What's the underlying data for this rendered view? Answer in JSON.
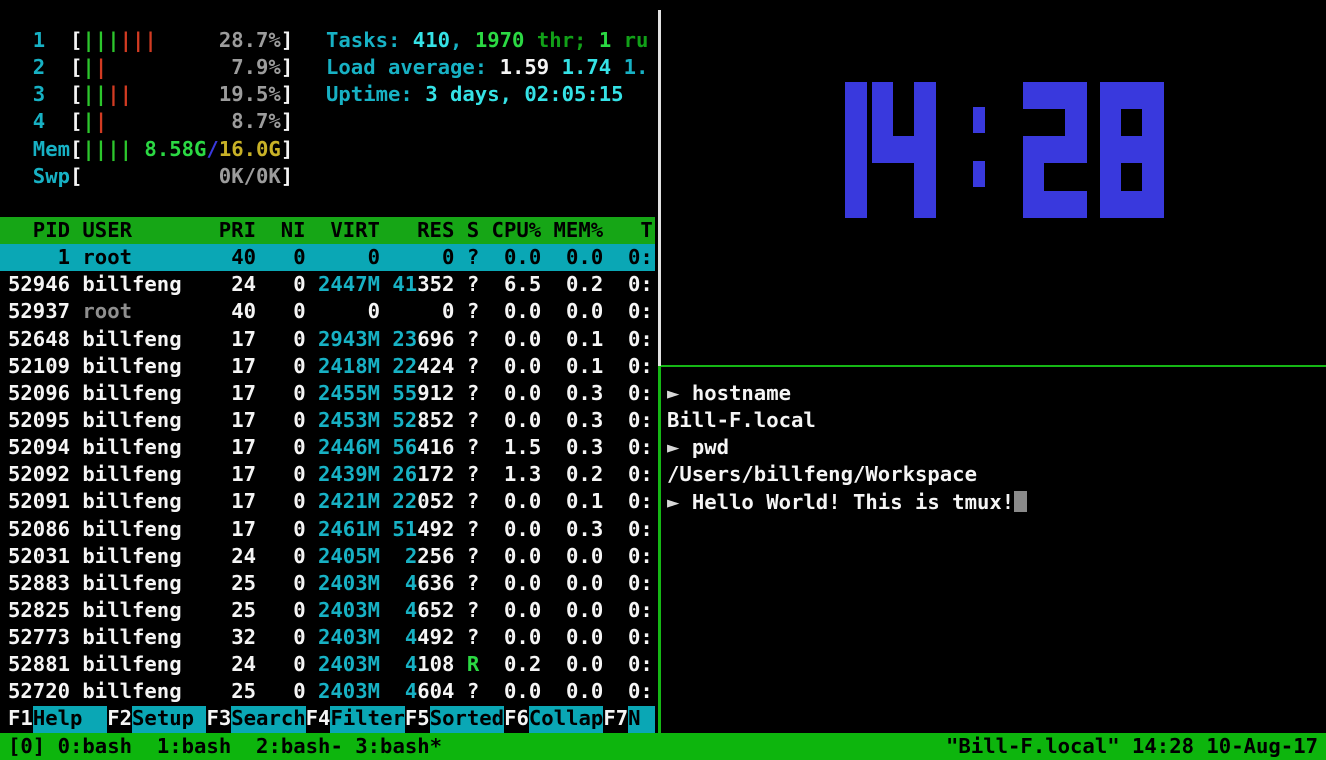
{
  "htop": {
    "meters": [
      {
        "label": "1",
        "green_bars": 3,
        "red_bars": 3,
        "text_segments": [
          {
            "t": "28.7%",
            "c": "c-gray"
          }
        ]
      },
      {
        "label": "2",
        "green_bars": 1,
        "red_bars": 1,
        "text_segments": [
          {
            "t": "7.9%",
            "c": "c-gray"
          }
        ]
      },
      {
        "label": "3",
        "green_bars": 2,
        "red_bars": 2,
        "text_segments": [
          {
            "t": "19.5%",
            "c": "c-gray"
          }
        ]
      },
      {
        "label": "4",
        "green_bars": 1,
        "red_bars": 1,
        "text_segments": [
          {
            "t": "8.7%",
            "c": "c-gray"
          }
        ]
      },
      {
        "label": "Mem",
        "green_bars": 4,
        "red_bars": 0,
        "text_segments": [
          {
            "t": "8.58G",
            "c": "c-bgreen"
          },
          {
            "t": "/",
            "c": "c-blue"
          },
          {
            "t": "16.0G",
            "c": "c-yellow"
          }
        ]
      },
      {
        "label": "Swp",
        "green_bars": 0,
        "red_bars": 0,
        "text_segments": [
          {
            "t": "0K/0K",
            "c": "c-gray"
          }
        ]
      }
    ],
    "info_lines": [
      {
        "name": "tasks-line",
        "segments": [
          {
            "t": "Tasks: ",
            "c": "c-cyan"
          },
          {
            "t": "410",
            "c": "c-bcyan"
          },
          {
            "t": ", ",
            "c": "c-cyan"
          },
          {
            "t": "1970",
            "c": "c-bgreen"
          },
          {
            "t": " thr; ",
            "c": "c-green"
          },
          {
            "t": "1",
            "c": "c-bgreen"
          },
          {
            "t": " ru",
            "c": "c-green"
          }
        ]
      },
      {
        "name": "load-average-line",
        "segments": [
          {
            "t": "Load average: ",
            "c": "c-cyan"
          },
          {
            "t": "1.59 ",
            "c": "c-white"
          },
          {
            "t": "1.74 ",
            "c": "c-bcyan"
          },
          {
            "t": "1.",
            "c": "c-cyan"
          }
        ]
      },
      {
        "name": "uptime-line",
        "segments": [
          {
            "t": "Uptime: ",
            "c": "c-cyan"
          },
          {
            "t": "3 days, 02:05:15",
            "c": "c-bcyan"
          }
        ]
      }
    ],
    "table": {
      "widths": {
        "pid": 5,
        "user": 10,
        "pri": 3,
        "ni": 3,
        "virt": 5,
        "res": 5,
        "s": 1,
        "cpu": 4,
        "mem": 4,
        "time": 3
      },
      "header": [
        "PID",
        "USER",
        "PRI",
        "NI",
        "VIRT",
        "RES",
        "S",
        "CPU%",
        "MEM%",
        "T"
      ],
      "rows": [
        {
          "pid": "1",
          "user": "root",
          "pri": "40",
          "ni": "0",
          "virt": "0",
          "virt_cyan": false,
          "res_hi": "",
          "res_lo": "0",
          "s": "?",
          "s_green": false,
          "cpu": "0.0",
          "mem": "0.0",
          "time": "0:",
          "selected": true,
          "user_dim": false
        },
        {
          "pid": "52946",
          "user": "billfeng",
          "pri": "24",
          "ni": "0",
          "virt": "2447M",
          "virt_cyan": true,
          "res_hi": "41",
          "res_lo": "352",
          "s": "?",
          "s_green": false,
          "cpu": "6.5",
          "mem": "0.2",
          "time": "0:",
          "selected": false,
          "user_dim": false
        },
        {
          "pid": "52937",
          "user": "root",
          "pri": "40",
          "ni": "0",
          "virt": "0",
          "virt_cyan": false,
          "res_hi": "",
          "res_lo": "0",
          "s": "?",
          "s_green": false,
          "cpu": "0.0",
          "mem": "0.0",
          "time": "0:",
          "selected": false,
          "user_dim": true
        },
        {
          "pid": "52648",
          "user": "billfeng",
          "pri": "17",
          "ni": "0",
          "virt": "2943M",
          "virt_cyan": true,
          "res_hi": "23",
          "res_lo": "696",
          "s": "?",
          "s_green": false,
          "cpu": "0.0",
          "mem": "0.1",
          "time": "0:",
          "selected": false,
          "user_dim": false
        },
        {
          "pid": "52109",
          "user": "billfeng",
          "pri": "17",
          "ni": "0",
          "virt": "2418M",
          "virt_cyan": true,
          "res_hi": "22",
          "res_lo": "424",
          "s": "?",
          "s_green": false,
          "cpu": "0.0",
          "mem": "0.1",
          "time": "0:",
          "selected": false,
          "user_dim": false
        },
        {
          "pid": "52096",
          "user": "billfeng",
          "pri": "17",
          "ni": "0",
          "virt": "2455M",
          "virt_cyan": true,
          "res_hi": "55",
          "res_lo": "912",
          "s": "?",
          "s_green": false,
          "cpu": "0.0",
          "mem": "0.3",
          "time": "0:",
          "selected": false,
          "user_dim": false
        },
        {
          "pid": "52095",
          "user": "billfeng",
          "pri": "17",
          "ni": "0",
          "virt": "2453M",
          "virt_cyan": true,
          "res_hi": "52",
          "res_lo": "852",
          "s": "?",
          "s_green": false,
          "cpu": "0.0",
          "mem": "0.3",
          "time": "0:",
          "selected": false,
          "user_dim": false
        },
        {
          "pid": "52094",
          "user": "billfeng",
          "pri": "17",
          "ni": "0",
          "virt": "2446M",
          "virt_cyan": true,
          "res_hi": "56",
          "res_lo": "416",
          "s": "?",
          "s_green": false,
          "cpu": "1.5",
          "mem": "0.3",
          "time": "0:",
          "selected": false,
          "user_dim": false
        },
        {
          "pid": "52092",
          "user": "billfeng",
          "pri": "17",
          "ni": "0",
          "virt": "2439M",
          "virt_cyan": true,
          "res_hi": "26",
          "res_lo": "172",
          "s": "?",
          "s_green": false,
          "cpu": "1.3",
          "mem": "0.2",
          "time": "0:",
          "selected": false,
          "user_dim": false
        },
        {
          "pid": "52091",
          "user": "billfeng",
          "pri": "17",
          "ni": "0",
          "virt": "2421M",
          "virt_cyan": true,
          "res_hi": "22",
          "res_lo": "052",
          "s": "?",
          "s_green": false,
          "cpu": "0.0",
          "mem": "0.1",
          "time": "0:",
          "selected": false,
          "user_dim": false
        },
        {
          "pid": "52086",
          "user": "billfeng",
          "pri": "17",
          "ni": "0",
          "virt": "2461M",
          "virt_cyan": true,
          "res_hi": "51",
          "res_lo": "492",
          "s": "?",
          "s_green": false,
          "cpu": "0.0",
          "mem": "0.3",
          "time": "0:",
          "selected": false,
          "user_dim": false
        },
        {
          "pid": "52031",
          "user": "billfeng",
          "pri": "24",
          "ni": "0",
          "virt": "2405M",
          "virt_cyan": true,
          "res_hi": "2",
          "res_lo": "256",
          "s": "?",
          "s_green": false,
          "cpu": "0.0",
          "mem": "0.0",
          "time": "0:",
          "selected": false,
          "user_dim": false
        },
        {
          "pid": "52883",
          "user": "billfeng",
          "pri": "25",
          "ni": "0",
          "virt": "2403M",
          "virt_cyan": true,
          "res_hi": "4",
          "res_lo": "636",
          "s": "?",
          "s_green": false,
          "cpu": "0.0",
          "mem": "0.0",
          "time": "0:",
          "selected": false,
          "user_dim": false
        },
        {
          "pid": "52825",
          "user": "billfeng",
          "pri": "25",
          "ni": "0",
          "virt": "2403M",
          "virt_cyan": true,
          "res_hi": "4",
          "res_lo": "652",
          "s": "?",
          "s_green": false,
          "cpu": "0.0",
          "mem": "0.0",
          "time": "0:",
          "selected": false,
          "user_dim": false
        },
        {
          "pid": "52773",
          "user": "billfeng",
          "pri": "32",
          "ni": "0",
          "virt": "2403M",
          "virt_cyan": true,
          "res_hi": "4",
          "res_lo": "492",
          "s": "?",
          "s_green": false,
          "cpu": "0.0",
          "mem": "0.0",
          "time": "0:",
          "selected": false,
          "user_dim": false
        },
        {
          "pid": "52881",
          "user": "billfeng",
          "pri": "24",
          "ni": "0",
          "virt": "2403M",
          "virt_cyan": true,
          "res_hi": "4",
          "res_lo": "108",
          "s": "R",
          "s_green": true,
          "cpu": "0.2",
          "mem": "0.0",
          "time": "0:",
          "selected": false,
          "user_dim": false
        },
        {
          "pid": "52720",
          "user": "billfeng",
          "pri": "25",
          "ni": "0",
          "virt": "2403M",
          "virt_cyan": true,
          "res_hi": "4",
          "res_lo": "604",
          "s": "?",
          "s_green": false,
          "cpu": "0.0",
          "mem": "0.0",
          "time": "0:",
          "selected": false,
          "user_dim": false
        }
      ]
    },
    "fkeys": [
      {
        "key": "F1",
        "label": "Help  "
      },
      {
        "key": "F2",
        "label": "Setup "
      },
      {
        "key": "F3",
        "label": "Search"
      },
      {
        "key": "F4",
        "label": "Filter"
      },
      {
        "key": "F5",
        "label": "Sorted"
      },
      {
        "key": "F6",
        "label": "Collap"
      },
      {
        "key": "F7",
        "label": "N"
      }
    ]
  },
  "clock": {
    "time": "14:28",
    "color": "#3939dd"
  },
  "shell": {
    "lines": [
      {
        "prompt": "►",
        "text": "hostname",
        "cursor": false
      },
      {
        "prompt": "",
        "text": "Bill-F.local",
        "cursor": false
      },
      {
        "prompt": "►",
        "text": "pwd",
        "cursor": false
      },
      {
        "prompt": "",
        "text": "/Users/billfeng/Workspace",
        "cursor": false
      },
      {
        "prompt": "►",
        "text": "Hello World! This is tmux!",
        "cursor": true
      }
    ]
  },
  "tmux_status": {
    "session": "[0] ",
    "windows": [
      {
        "label": "0:bash",
        "suffix": " "
      },
      {
        "label": "1:bash",
        "suffix": " "
      },
      {
        "label": "2:bash-",
        "suffix": ""
      },
      {
        "label": "3:bash*",
        "suffix": ""
      }
    ],
    "right": "\"Bill-F.local\" 14:28 10-Aug-17"
  }
}
